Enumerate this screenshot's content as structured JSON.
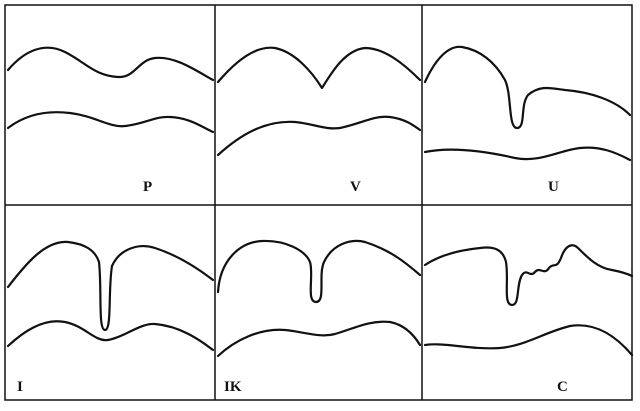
{
  "panels": [
    {
      "label": "P"
    },
    {
      "label": "V"
    },
    {
      "label": "U"
    },
    {
      "label": "I"
    },
    {
      "label": "IK"
    },
    {
      "label": "C"
    }
  ],
  "colors": {
    "line": "#111111",
    "background": "#ffffff"
  }
}
